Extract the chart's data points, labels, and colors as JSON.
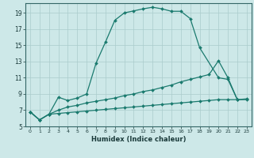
{
  "xlabel": "Humidex (Indice chaleur)",
  "bg_color": "#cde8e8",
  "grid_color": "#aacccc",
  "line_color": "#1a7a6e",
  "xlim": [
    -0.5,
    23.5
  ],
  "ylim": [
    5,
    20.2
  ],
  "xticks": [
    0,
    1,
    2,
    3,
    4,
    5,
    6,
    7,
    8,
    9,
    10,
    11,
    12,
    13,
    14,
    15,
    16,
    17,
    18,
    19,
    20,
    21,
    22,
    23
  ],
  "yticks": [
    5,
    7,
    9,
    11,
    13,
    15,
    17,
    19
  ],
  "line3_x": [
    0,
    1,
    2,
    3,
    4,
    5,
    6,
    7,
    8,
    9,
    10,
    11,
    12,
    13,
    14,
    15,
    16,
    17,
    18,
    20,
    21,
    22
  ],
  "line3_y": [
    6.8,
    5.8,
    6.5,
    8.6,
    8.2,
    8.5,
    9.0,
    12.8,
    15.4,
    18.1,
    19.0,
    19.25,
    19.5,
    19.7,
    19.5,
    19.2,
    19.2,
    18.3,
    14.7,
    11.0,
    10.8,
    8.3
  ],
  "line2_x": [
    0,
    1,
    2,
    3,
    4,
    5,
    6,
    7,
    8,
    9,
    10,
    11,
    12,
    13,
    14,
    15,
    16,
    17,
    18,
    19,
    20,
    21,
    22,
    23
  ],
  "line2_y": [
    6.8,
    5.8,
    6.5,
    7.0,
    7.4,
    7.6,
    7.9,
    8.1,
    8.3,
    8.5,
    8.8,
    9.0,
    9.3,
    9.5,
    9.8,
    10.1,
    10.5,
    10.8,
    11.1,
    11.4,
    13.1,
    11.0,
    8.3,
    8.3
  ],
  "line1_x": [
    0,
    1,
    2,
    3,
    4,
    5,
    6,
    7,
    8,
    9,
    10,
    11,
    12,
    13,
    14,
    15,
    16,
    17,
    18,
    19,
    20,
    21,
    22,
    23
  ],
  "line1_y": [
    6.8,
    5.8,
    6.5,
    6.6,
    6.7,
    6.8,
    6.9,
    7.0,
    7.1,
    7.2,
    7.3,
    7.4,
    7.5,
    7.6,
    7.7,
    7.8,
    7.9,
    8.0,
    8.1,
    8.2,
    8.3,
    8.3,
    8.3,
    8.4
  ],
  "marker": "D",
  "markersize": 2.0,
  "linewidth": 0.9
}
